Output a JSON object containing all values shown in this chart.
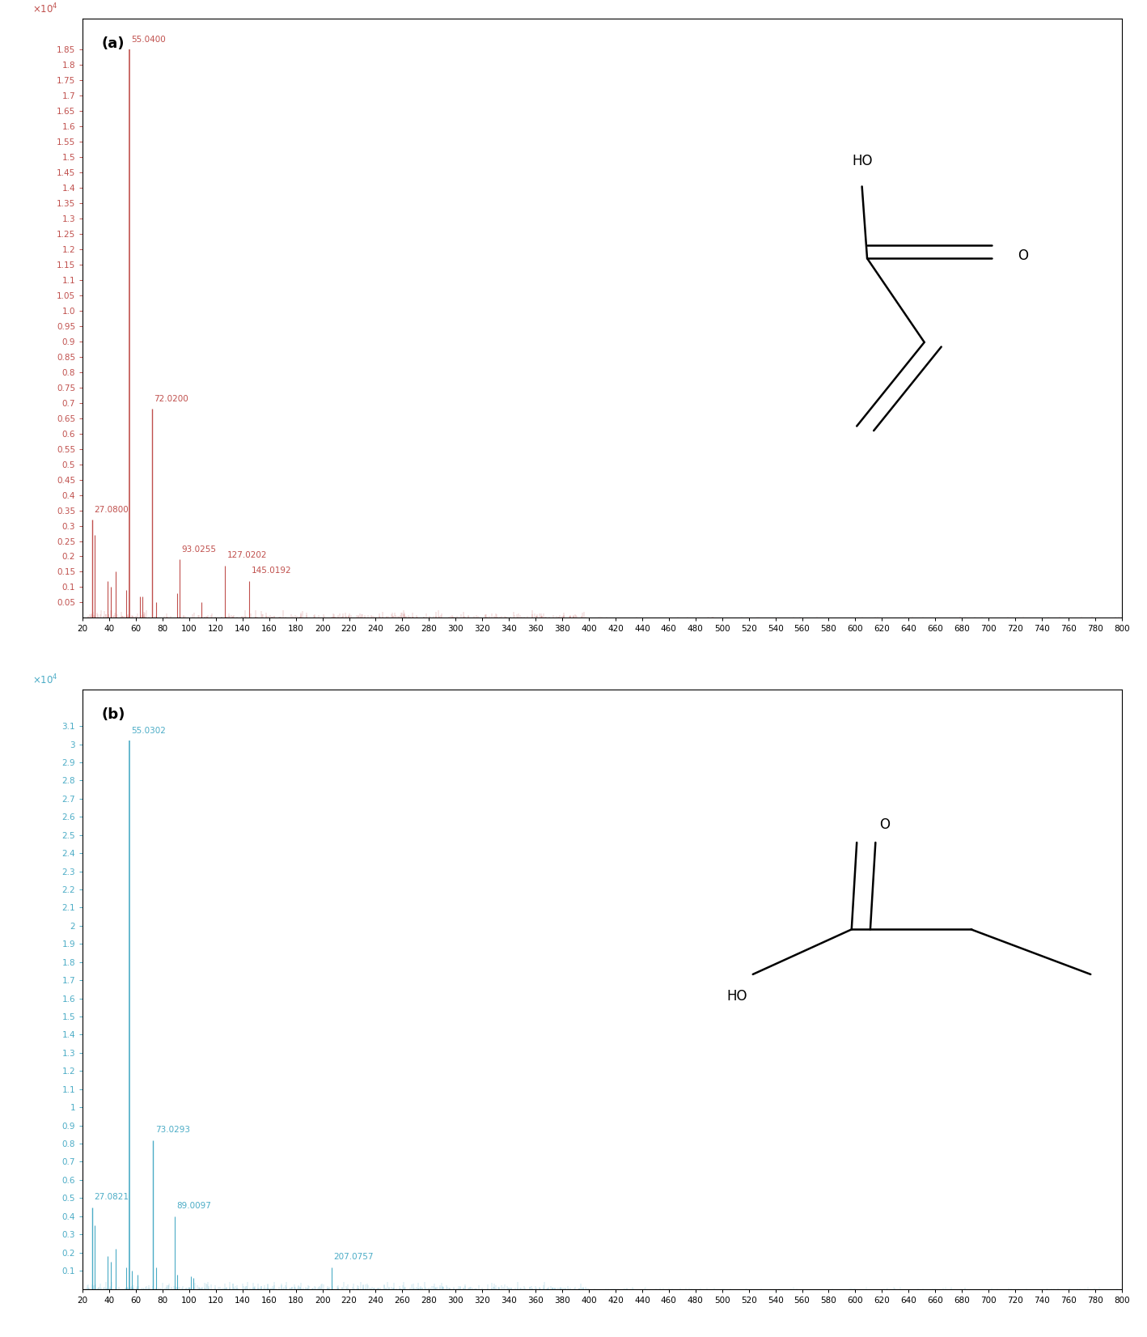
{
  "panel_a": {
    "label": "(a)",
    "color": "#C0504D",
    "ylim_max": 1.95,
    "ytick_min": 0.05,
    "ytick_max": 1.85,
    "ytick_step": 0.05,
    "peaks": [
      {
        "mz": 55.04,
        "intensity": 1.85,
        "label": "55.0400",
        "lw": 1.2
      },
      {
        "mz": 72.02,
        "intensity": 0.68,
        "label": "72.0200",
        "lw": 1.0
      },
      {
        "mz": 27.08,
        "intensity": 0.32,
        "label": "27.0800",
        "lw": 1.0
      },
      {
        "mz": 29.0,
        "intensity": 0.27,
        "label": "",
        "lw": 0.8
      },
      {
        "mz": 45.0,
        "intensity": 0.15,
        "label": "",
        "lw": 0.8
      },
      {
        "mz": 93.0255,
        "intensity": 0.19,
        "label": "93.0255",
        "lw": 0.8
      },
      {
        "mz": 127.0202,
        "intensity": 0.17,
        "label": "127.0202",
        "lw": 0.8
      },
      {
        "mz": 145.0192,
        "intensity": 0.12,
        "label": "145.0192",
        "lw": 0.8
      },
      {
        "mz": 39.0,
        "intensity": 0.12,
        "label": "",
        "lw": 0.8
      },
      {
        "mz": 41.0,
        "intensity": 0.1,
        "label": "",
        "lw": 0.8
      },
      {
        "mz": 53.0,
        "intensity": 0.09,
        "label": "",
        "lw": 0.8
      },
      {
        "mz": 63.0,
        "intensity": 0.07,
        "label": "",
        "lw": 0.8
      },
      {
        "mz": 65.0,
        "intensity": 0.07,
        "label": "",
        "lw": 0.8
      },
      {
        "mz": 75.0,
        "intensity": 0.05,
        "label": "",
        "lw": 0.8
      },
      {
        "mz": 91.0,
        "intensity": 0.08,
        "label": "",
        "lw": 0.8
      },
      {
        "mz": 109.0,
        "intensity": 0.05,
        "label": "",
        "lw": 0.8
      }
    ],
    "noise_seed": 42,
    "noise_max": 0.025
  },
  "panel_b": {
    "label": "(b)",
    "color": "#4BACC6",
    "ylim_max": 3.3,
    "ytick_min": 0.1,
    "ytick_max": 3.1,
    "ytick_step": 0.1,
    "peaks": [
      {
        "mz": 55.0302,
        "intensity": 3.02,
        "label": "55.0302",
        "lw": 1.2
      },
      {
        "mz": 73.0293,
        "intensity": 0.82,
        "label": "73.0293",
        "lw": 1.0
      },
      {
        "mz": 27.0821,
        "intensity": 0.45,
        "label": "27.0821",
        "lw": 1.0
      },
      {
        "mz": 29.0,
        "intensity": 0.35,
        "label": "",
        "lw": 0.8
      },
      {
        "mz": 89.0097,
        "intensity": 0.4,
        "label": "89.0097",
        "lw": 0.8
      },
      {
        "mz": 45.0,
        "intensity": 0.22,
        "label": "",
        "lw": 0.8
      },
      {
        "mz": 39.0,
        "intensity": 0.18,
        "label": "",
        "lw": 0.8
      },
      {
        "mz": 41.0,
        "intensity": 0.15,
        "label": "",
        "lw": 0.8
      },
      {
        "mz": 53.0,
        "intensity": 0.12,
        "label": "",
        "lw": 0.8
      },
      {
        "mz": 57.0,
        "intensity": 0.1,
        "label": "",
        "lw": 0.8
      },
      {
        "mz": 61.0,
        "intensity": 0.08,
        "label": "",
        "lw": 0.8
      },
      {
        "mz": 75.0,
        "intensity": 0.12,
        "label": "",
        "lw": 0.8
      },
      {
        "mz": 91.0,
        "intensity": 0.08,
        "label": "",
        "lw": 0.8
      },
      {
        "mz": 101.0,
        "intensity": 0.07,
        "label": "",
        "lw": 0.8
      },
      {
        "mz": 103.0,
        "intensity": 0.06,
        "label": "",
        "lw": 0.8
      },
      {
        "mz": 207.0757,
        "intensity": 0.12,
        "label": "207.0757",
        "lw": 0.8
      }
    ],
    "noise_seed": 123,
    "noise_max": 0.04
  },
  "xmin": 20,
  "xmax": 800,
  "xticks": [
    20,
    40,
    60,
    80,
    100,
    120,
    140,
    160,
    180,
    200,
    220,
    240,
    260,
    280,
    300,
    320,
    340,
    360,
    380,
    400,
    420,
    440,
    460,
    480,
    500,
    520,
    540,
    560,
    580,
    600,
    620,
    640,
    660,
    680,
    700,
    720,
    740,
    760,
    780,
    800
  ],
  "tick_label_fontsize": 7.5,
  "annot_fontsize": 7.5,
  "label_fontsize": 13
}
